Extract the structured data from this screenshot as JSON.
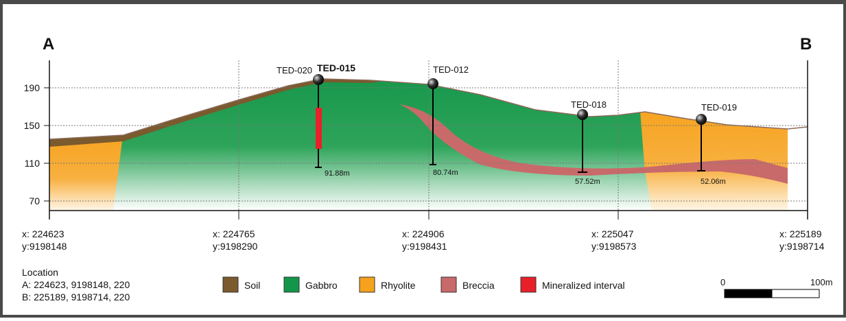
{
  "section": {
    "left_end": "A",
    "right_end": "B"
  },
  "elevation_ticks": [
    "190",
    "150",
    "110",
    "70"
  ],
  "x_labels": [
    {
      "x": "x: 224623",
      "y": "y:9198148"
    },
    {
      "x": "x: 224765",
      "y": "y:9198290"
    },
    {
      "x": "x: 224906",
      "y": "y:9198431"
    },
    {
      "x": "x: 225047",
      "y": "y:9198573"
    },
    {
      "x": "x: 225189",
      "y": "y:9198714"
    }
  ],
  "drill_holes": [
    {
      "name": "TED-020",
      "depth": "91.88m"
    },
    {
      "name": "TED-015"
    },
    {
      "name": "TED-012",
      "depth": "80.74m"
    },
    {
      "name": "TED-018",
      "depth": "57.52m"
    },
    {
      "name": "TED-019",
      "depth": "52.06m"
    }
  ],
  "location": {
    "title": "Location",
    "a": "A: 224623, 9198148, 220",
    "b": "B: 225189, 9198714, 220"
  },
  "legend": [
    "Soil",
    "Gabbro",
    "Rhyolite",
    "Breccia",
    "Mineralized interval"
  ],
  "scale": {
    "start": "0",
    "end": "100m"
  }
}
